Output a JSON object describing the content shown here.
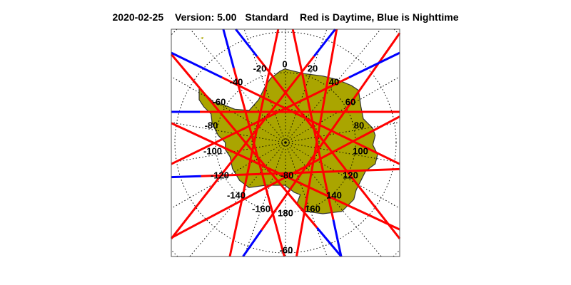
{
  "title": {
    "date": "2020-02-25",
    "version": "Version: 5.00",
    "mode": "Standard",
    "legend_text": "Red is Daytime, Blue is Nighttime"
  },
  "map": {
    "projection": "south polar stereographic",
    "land_color": "#aaa500",
    "day_color": "#ff0000",
    "night_color": "#0000ff",
    "grid_style": "dotted",
    "longitude_labels": [
      "0",
      "20",
      "40",
      "60",
      "80",
      "100",
      "120",
      "140",
      "160",
      "180",
      "-160",
      "-140",
      "-120",
      "-100",
      "-80",
      "-60",
      "-40",
      "-20"
    ],
    "latitude_labels": [
      "-80",
      "-60"
    ]
  }
}
